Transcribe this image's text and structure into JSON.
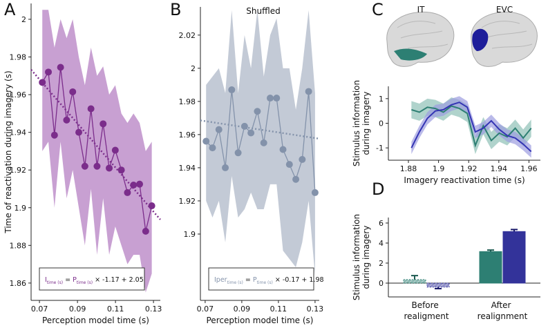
{
  "chart_data": [
    {
      "type": "line",
      "panel": "A",
      "xlabel": "Perception model time (s)",
      "ylabel": "Time of reactivation during imagery (s)",
      "x": [
        0.0715,
        0.0747,
        0.0779,
        0.0811,
        0.0843,
        0.0875,
        0.0907,
        0.0939,
        0.0971,
        0.1003,
        0.1035,
        0.1067,
        0.1099,
        0.1131,
        0.1163,
        0.1195,
        0.1227,
        0.1259,
        0.1291
      ],
      "values": [
        1.9665,
        1.972,
        1.9385,
        1.9745,
        1.9465,
        1.9615,
        1.94,
        1.922,
        1.9525,
        1.922,
        1.9445,
        1.921,
        1.9305,
        1.92,
        1.908,
        1.912,
        1.9125,
        1.8875,
        1.901
      ],
      "lower": [
        1.93,
        1.935,
        1.9,
        1.935,
        1.905,
        1.92,
        1.9,
        1.88,
        1.91,
        1.875,
        1.905,
        1.875,
        1.89,
        1.88,
        1.87,
        1.875,
        1.875,
        1.855,
        1.865
      ],
      "upper": [
        2.005,
        2.005,
        1.985,
        2.0,
        1.99,
        2.0,
        1.98,
        1.965,
        1.985,
        1.97,
        1.975,
        1.96,
        1.965,
        1.95,
        1.945,
        1.95,
        1.945,
        1.93,
        1.935
      ],
      "color": "#7b2d8b",
      "band_color": "#c8a0d2",
      "xlim": [
        0.0656,
        0.1336
      ],
      "xticks": [
        0.07,
        0.09,
        0.11,
        0.13
      ],
      "ylim": [
        1.8508,
        2.0084
      ],
      "yticks": [
        1.86,
        1.88,
        1.9,
        1.92,
        1.94,
        1.96,
        1.98,
        2
      ],
      "fit": {
        "lhs": "I",
        "lhs_sub": "time (s)",
        "eq": "=",
        "rhs": "P",
        "rhs_sub": "time (s)",
        "times": "×",
        "slope": -1.17,
        "plus": "+",
        "intercept": 2.05
      }
    },
    {
      "type": "line",
      "panel": "B",
      "subtitle": "Shuffled",
      "xlabel": "Perception model time (s)",
      "x": [
        0.0705,
        0.074,
        0.0775,
        0.081,
        0.0845,
        0.088,
        0.0915,
        0.095,
        0.0985,
        0.102,
        0.1055,
        0.109,
        0.1125,
        0.116,
        0.1195,
        0.123,
        0.1265,
        0.13
      ],
      "values": [
        1.956,
        1.952,
        1.963,
        1.94,
        1.987,
        1.949,
        1.965,
        1.961,
        1.974,
        1.955,
        1.982,
        1.982,
        1.951,
        1.942,
        1.933,
        1.945,
        1.986,
        1.925
      ],
      "lower": [
        1.92,
        1.91,
        1.92,
        1.895,
        1.935,
        1.91,
        1.915,
        1.925,
        1.915,
        1.915,
        1.93,
        1.93,
        1.89,
        1.885,
        1.88,
        1.895,
        1.92,
        1.875
      ],
      "upper": [
        1.99,
        1.995,
        2.0,
        1.985,
        2.035,
        1.985,
        2.02,
        2.0,
        2.035,
        1.995,
        2.02,
        2.03,
        2.0,
        2.0,
        1.975,
        2.0,
        2.035,
        1.985
      ],
      "color": "#8392aa",
      "band_color": "#c3cad6",
      "xlim": [
        0.0674,
        0.1323
      ],
      "xticks": [
        0.07,
        0.09,
        0.11,
        0.13
      ],
      "ylim": [
        1.86,
        2.037
      ],
      "yticks": [
        1.9,
        1.92,
        1.94,
        1.96,
        1.98,
        2,
        2.02
      ],
      "fit": {
        "lhs": "Iper",
        "lhs_sub": "time (s)",
        "eq": "=",
        "rhs": "P",
        "rhs_sub": "time (s)",
        "times": "×",
        "slope": -0.17,
        "plus": "+",
        "intercept": 1.98
      }
    },
    {
      "type": "line",
      "panel": "C",
      "xlabel": "Imagery reactivation time (s)",
      "ylabel": [
        "Stimulus information",
        "during imagery"
      ],
      "x": [
        1.882,
        1.8873,
        1.8926,
        1.8979,
        1.9032,
        1.9085,
        1.9138,
        1.9191,
        1.9244,
        1.9297,
        1.935,
        1.9403,
        1.9456,
        1.9509,
        1.9562,
        1.9615
      ],
      "series": [
        {
          "name": "IT",
          "color": "#2d7f73",
          "band_color": "#8fc0b6",
          "values": [
            0.55,
            0.45,
            0.65,
            0.6,
            0.45,
            0.7,
            0.6,
            0.4,
            -0.9,
            -0.1,
            -0.7,
            -0.4,
            -0.55,
            -0.2,
            -0.6,
            -0.2
          ],
          "lower": [
            0.2,
            0.1,
            0.3,
            0.25,
            0.1,
            0.35,
            0.25,
            0.05,
            -1.25,
            -0.45,
            -1.05,
            -0.75,
            -0.9,
            -0.55,
            -0.95,
            -0.55
          ],
          "upper": [
            0.9,
            0.8,
            1.0,
            0.95,
            0.8,
            1.05,
            0.95,
            0.75,
            -0.55,
            0.25,
            -0.35,
            -0.05,
            -0.2,
            0.15,
            -0.25,
            0.15
          ]
        },
        {
          "name": "EVC",
          "color": "#3434b4",
          "band_color": "#9c9ce0",
          "values": [
            -1.0,
            -0.35,
            0.2,
            0.5,
            0.55,
            0.75,
            0.85,
            0.65,
            -0.35,
            -0.2,
            0.1,
            -0.25,
            -0.5,
            -0.6,
            -0.85,
            -1.15
          ],
          "lower": [
            -1.25,
            -0.6,
            -0.05,
            0.25,
            0.3,
            0.5,
            0.6,
            0.4,
            -0.6,
            -0.45,
            -0.15,
            -0.5,
            -0.75,
            -0.85,
            -1.1,
            -1.4
          ],
          "upper": [
            -0.75,
            -0.1,
            0.45,
            0.75,
            0.8,
            1.0,
            1.1,
            0.9,
            -0.1,
            0.05,
            0.35,
            0.0,
            -0.25,
            -0.35,
            -0.6,
            -0.9
          ]
        }
      ],
      "xlim": [
        1.8667,
        1.9676
      ],
      "xticks": [
        1.88,
        1.9,
        1.92,
        1.94,
        1.96
      ],
      "ylim": [
        -1.5,
        1.5
      ],
      "yticks": [
        -1,
        0,
        1
      ]
    },
    {
      "type": "bar",
      "panel": "D",
      "ylabel": [
        "Stimulus information",
        "during imagery"
      ],
      "categories": [
        "Before realigment",
        "After realignment"
      ],
      "hatched": [
        true,
        false
      ],
      "series": [
        {
          "color": "#2d7f73",
          "values": [
            0.35,
            3.15
          ],
          "errors": [
            0.4,
            0.15
          ]
        },
        {
          "color": "#33339a",
          "values": [
            -0.4,
            5.15
          ],
          "errors": [
            0.15,
            0.2
          ]
        }
      ],
      "ylim": [
        -1.38,
        6.55
      ],
      "yticks": [
        0,
        2,
        4,
        6
      ]
    }
  ]
}
